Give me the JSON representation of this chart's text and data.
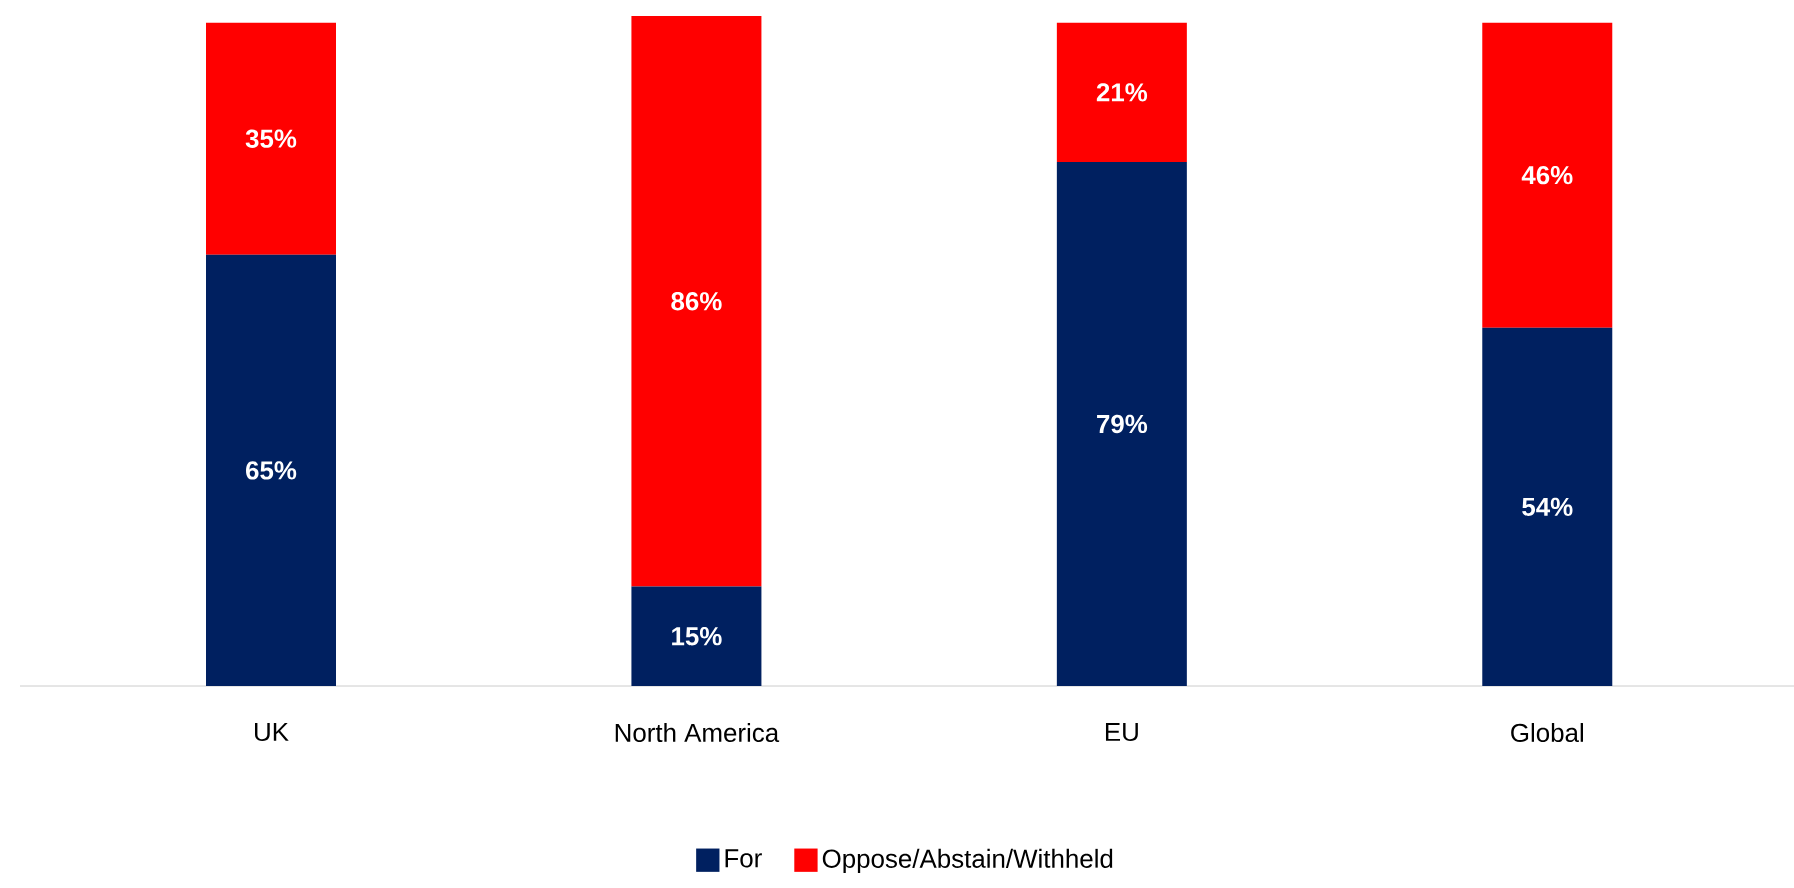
{
  "chart_data": {
    "type": "bar",
    "stacked": true,
    "categories": [
      "UK",
      "North America",
      "EU",
      "Global"
    ],
    "series": [
      {
        "name": "For",
        "color": "#002060",
        "values": [
          65,
          15,
          79,
          54
        ],
        "value_labels": [
          "65%",
          "15%",
          "79%",
          "54%"
        ]
      },
      {
        "name": "Oppose/Abstain/Withheld",
        "color": "#ff0000",
        "values": [
          35,
          86,
          21,
          46
        ],
        "value_labels": [
          "35%",
          "86%",
          "21%",
          "46%"
        ]
      }
    ],
    "legend": "bottom"
  }
}
